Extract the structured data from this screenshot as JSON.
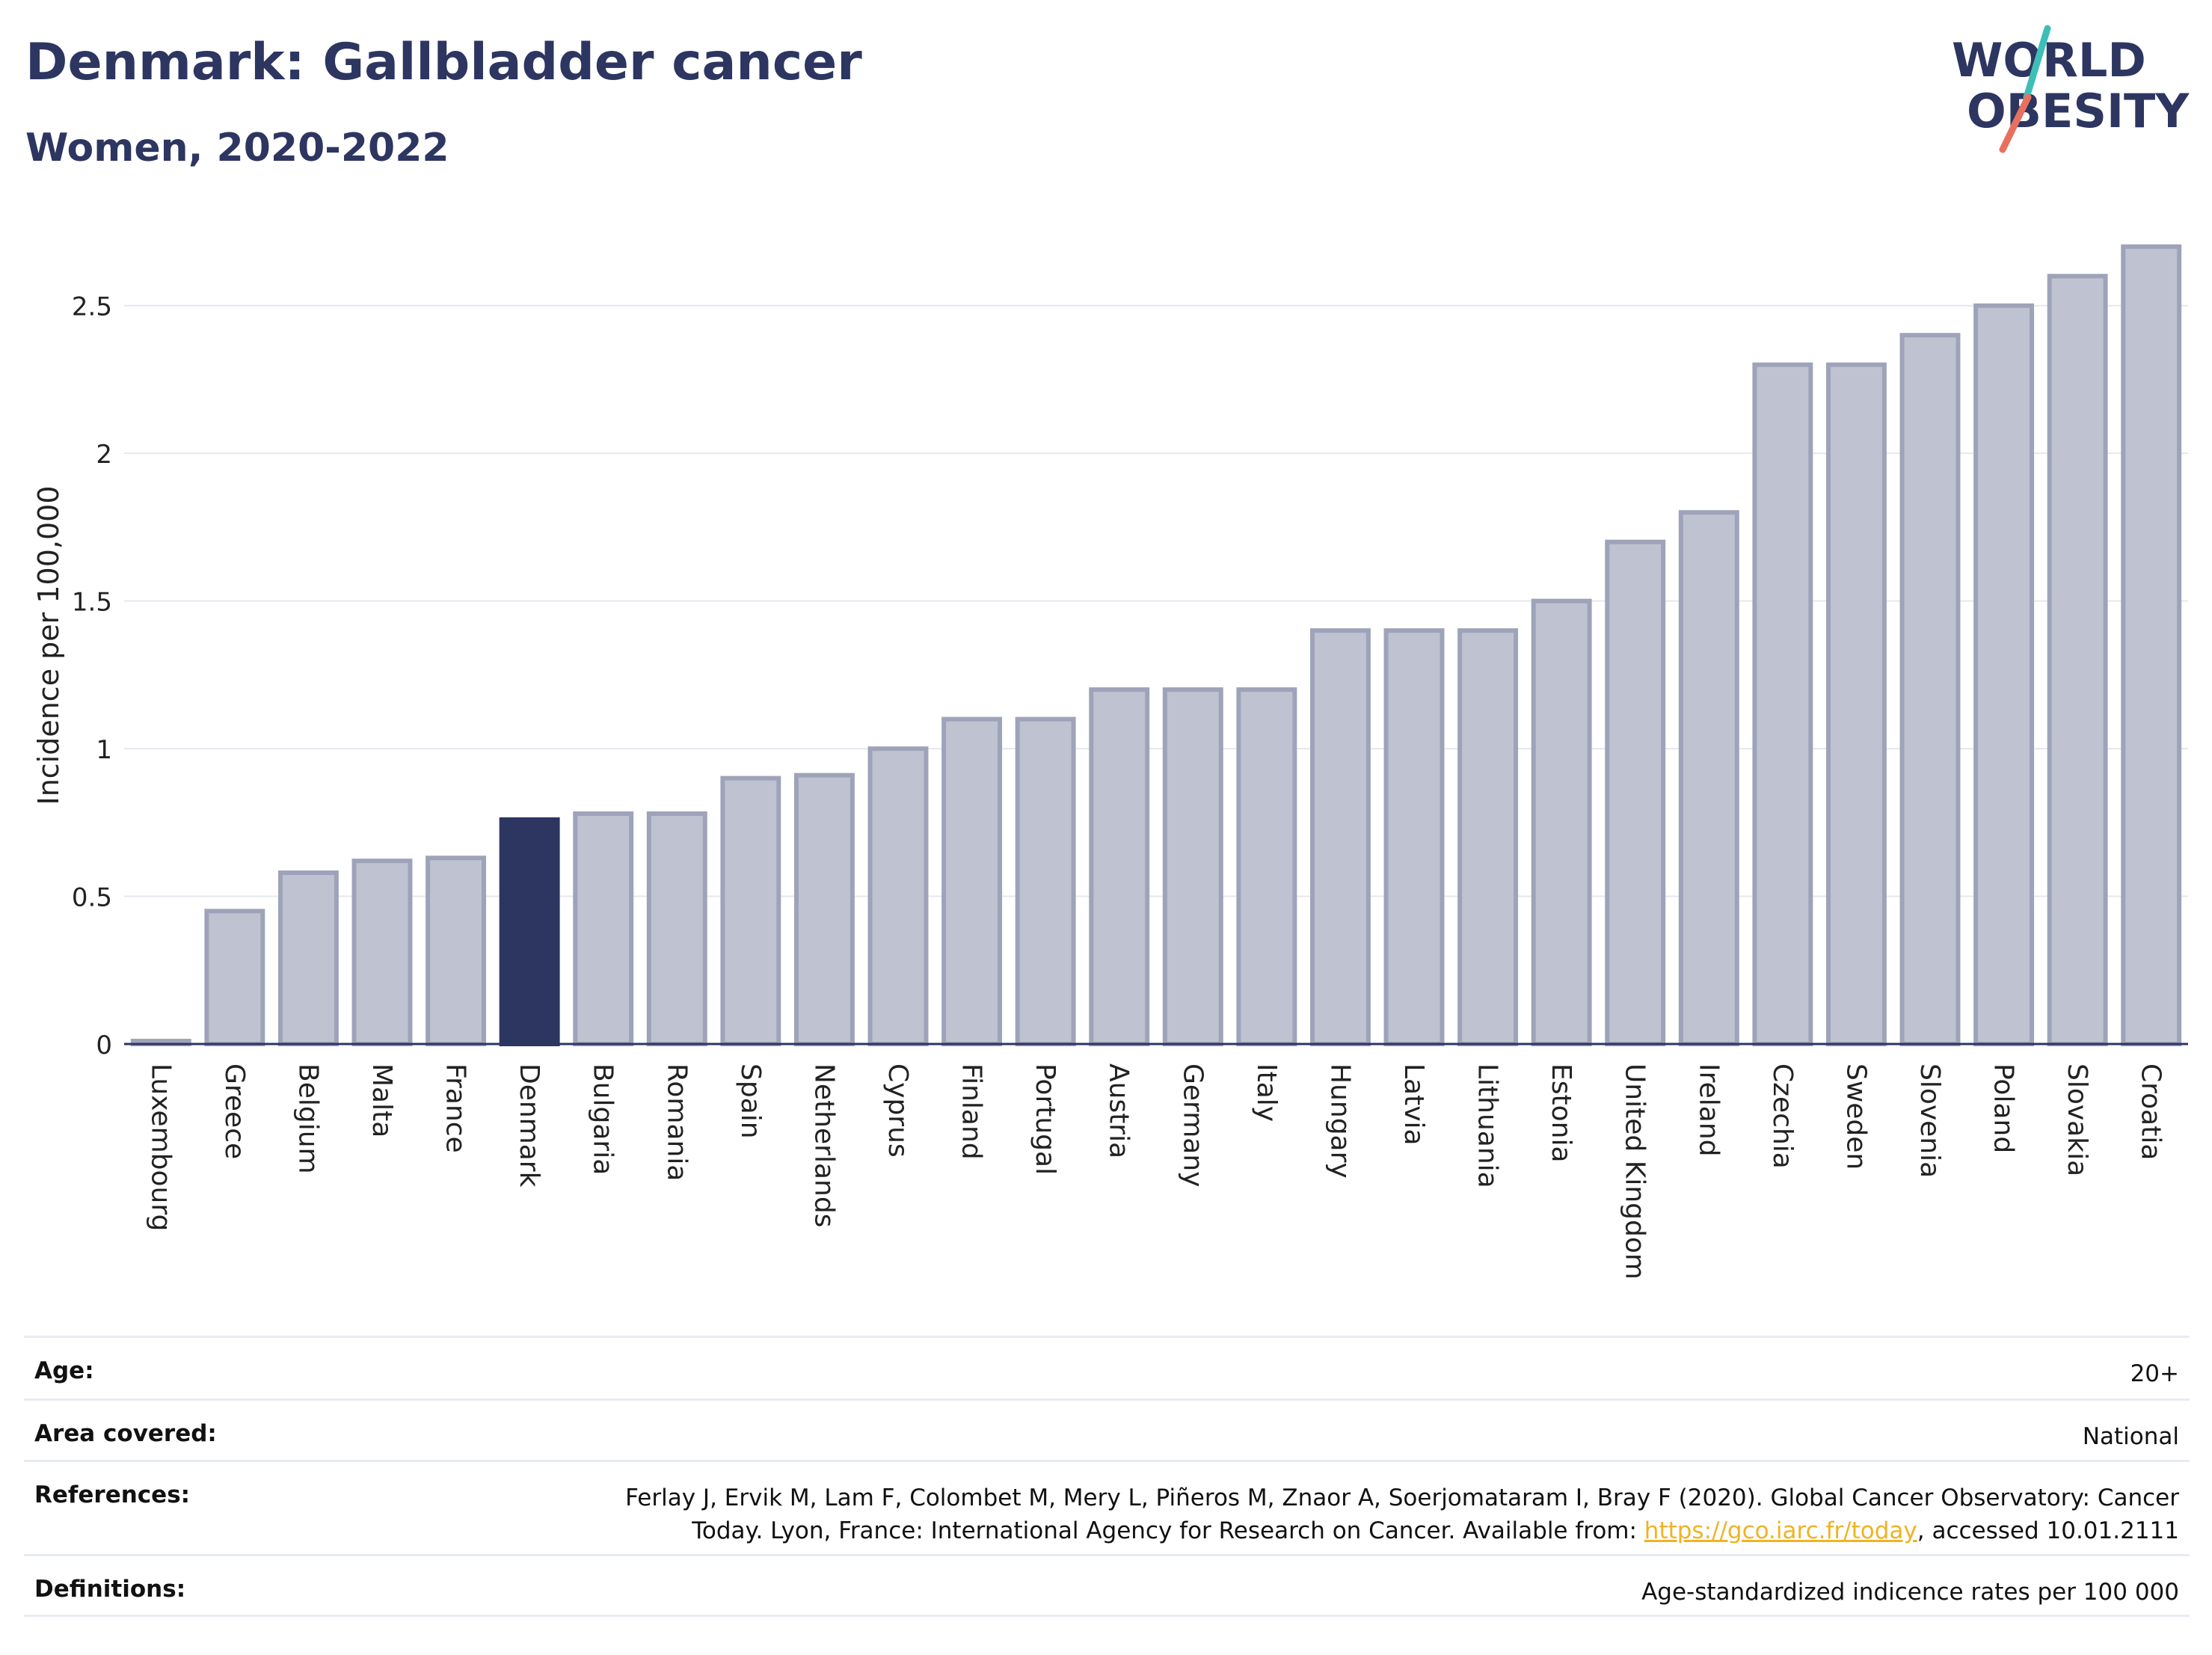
{
  "header": {
    "title": "Denmark: Gallbladder cancer",
    "subtitle": "Women, 2020-2022"
  },
  "logo": {
    "line1": "WORLD",
    "line2": "OBESITY",
    "accent_teal": "#3dbfb8",
    "accent_coral": "#e8705f"
  },
  "colors": {
    "highlight": "#2d3561",
    "bar_fill": "#bfc2d0",
    "bar_stroke": "#9ea3b9",
    "grid": "#e6e8ef"
  },
  "chart_data": {
    "type": "bar",
    "title": "Denmark: Gallbladder cancer",
    "subtitle": "Women, 2020-2022",
    "ylabel": "Incidence per 100,000",
    "xlabel": "",
    "ylim": [
      0,
      2.75
    ],
    "yticks": [
      "0",
      "0.5",
      "1",
      "1.5",
      "2",
      "2.5"
    ],
    "grid": true,
    "highlight": "Denmark",
    "categories": [
      "Luxembourg",
      "Greece",
      "Belgium",
      "Malta",
      "France",
      "Denmark",
      "Bulgaria",
      "Romania",
      "Spain",
      "Netherlands",
      "Cyprus",
      "Finland",
      "Portugal",
      "Austria",
      "Germany",
      "Italy",
      "Hungary",
      "Latvia",
      "Lithuania",
      "Estonia",
      "United Kingdom",
      "Ireland",
      "Czechia",
      "Sweden",
      "Slovenia",
      "Poland",
      "Slovakia",
      "Croatia"
    ],
    "values": [
      0.01,
      0.45,
      0.58,
      0.62,
      0.63,
      0.76,
      0.78,
      0.78,
      0.9,
      0.91,
      1.0,
      1.1,
      1.1,
      1.2,
      1.2,
      1.2,
      1.4,
      1.4,
      1.4,
      1.5,
      1.7,
      1.8,
      2.3,
      2.3,
      2.4,
      2.5,
      2.6,
      2.7
    ]
  },
  "meta": {
    "age_label": "Age:",
    "age_value": "20+",
    "area_label": "Area covered:",
    "area_value": "National",
    "references_label": "References:",
    "references_line1": "Ferlay J, Ervik M, Lam F, Colombet M, Mery L, Piñeros M, Znaor A, Soerjomataram I, Bray F (2020). Global Cancer Observatory: Cancer",
    "references_line2_pre": "Today. Lyon, France: International Agency for Research on Cancer. Available from: ",
    "references_link": "https://gco.iarc.fr/today",
    "references_line2_post": ", accessed 10.01.2111",
    "definitions_label": "Definitions:",
    "definitions_value": "Age-standardized indicence rates per 100 000"
  }
}
